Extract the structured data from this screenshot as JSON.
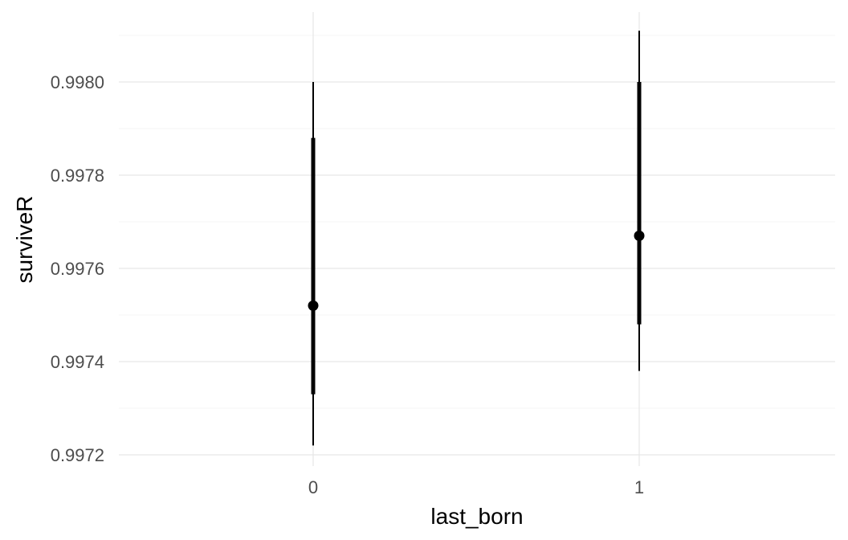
{
  "chart_data": {
    "type": "pointinterval",
    "xlabel": "last_born",
    "ylabel": "surviveR",
    "categories": [
      "0",
      "1"
    ],
    "y_ticks": [
      "0.9972",
      "0.9974",
      "0.9976",
      "0.9978",
      "0.9980"
    ],
    "y_tick_values": [
      0.9972,
      0.9974,
      0.9976,
      0.9978,
      0.998
    ],
    "ylim": [
      0.99718,
      0.99811
    ],
    "points": [
      {
        "x": "0",
        "y": 0.99752,
        "inner": [
          0.99733,
          0.99788
        ],
        "outer": [
          0.99722,
          0.998
        ]
      },
      {
        "x": "1",
        "y": 0.99767,
        "inner": [
          0.99748,
          0.998
        ],
        "outer": [
          0.99738,
          0.99811
        ]
      }
    ],
    "grid": true,
    "legend": "none",
    "colors": {
      "mark": "#000000",
      "grid": "#e6e6e6",
      "text": "#4d4d4d"
    }
  }
}
